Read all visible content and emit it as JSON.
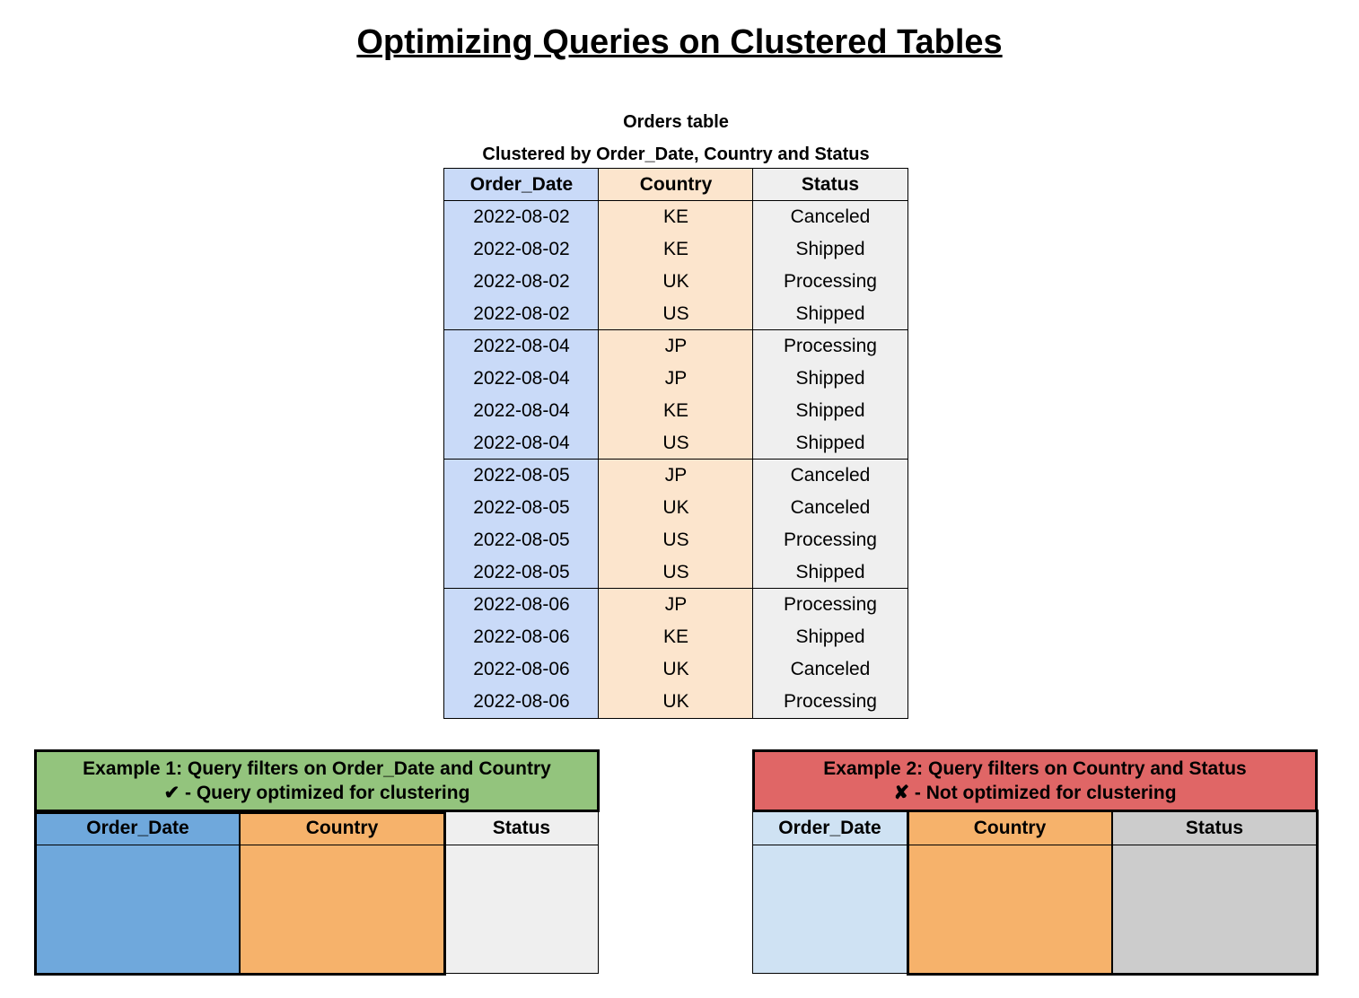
{
  "title": "Optimizing Queries on Clustered Tables",
  "orders": {
    "caption": "Orders table",
    "subcaption": "Clustered by Order_Date, Country and Status",
    "columns": [
      "Order_Date",
      "Country",
      "Status"
    ],
    "column_colors": [
      "#c9daf8",
      "#fce5cd",
      "#efefef"
    ],
    "rows": [
      [
        "2022-08-02",
        "KE",
        "Canceled"
      ],
      [
        "2022-08-02",
        "KE",
        "Shipped"
      ],
      [
        "2022-08-02",
        "UK",
        "Processing"
      ],
      [
        "2022-08-02",
        "US",
        "Shipped"
      ],
      [
        "2022-08-04",
        "JP",
        "Processing"
      ],
      [
        "2022-08-04",
        "JP",
        "Shipped"
      ],
      [
        "2022-08-04",
        "KE",
        "Shipped"
      ],
      [
        "2022-08-04",
        "US",
        "Shipped"
      ],
      [
        "2022-08-05",
        "JP",
        "Canceled"
      ],
      [
        "2022-08-05",
        "UK",
        "Canceled"
      ],
      [
        "2022-08-05",
        "US",
        "Processing"
      ],
      [
        "2022-08-05",
        "US",
        "Shipped"
      ],
      [
        "2022-08-06",
        "JP",
        "Processing"
      ],
      [
        "2022-08-06",
        "KE",
        "Shipped"
      ],
      [
        "2022-08-06",
        "UK",
        "Canceled"
      ],
      [
        "2022-08-06",
        "UK",
        "Processing"
      ]
    ]
  },
  "examples": [
    {
      "line1": "Example 1: Query filters on Order_Date and Country",
      "line2": "✔ - Query optimized for clustering",
      "header_color": "#93c47d",
      "columns": [
        "Order_Date",
        "Country",
        "Status"
      ],
      "column_colors": [
        "#6fa8dc",
        "#f6b26b",
        "#efefef"
      ],
      "highlighted_columns": [
        "Order_Date",
        "Country"
      ]
    },
    {
      "line1": "Example 2: Query filters on Country and Status",
      "line2": "✘ - Not optimized for clustering",
      "header_color": "#e06666",
      "columns": [
        "Order_Date",
        "Country",
        "Status"
      ],
      "column_colors": [
        "#cfe2f3",
        "#f6b26b",
        "#cccccc"
      ],
      "highlighted_columns": [
        "Country",
        "Status"
      ]
    }
  ]
}
